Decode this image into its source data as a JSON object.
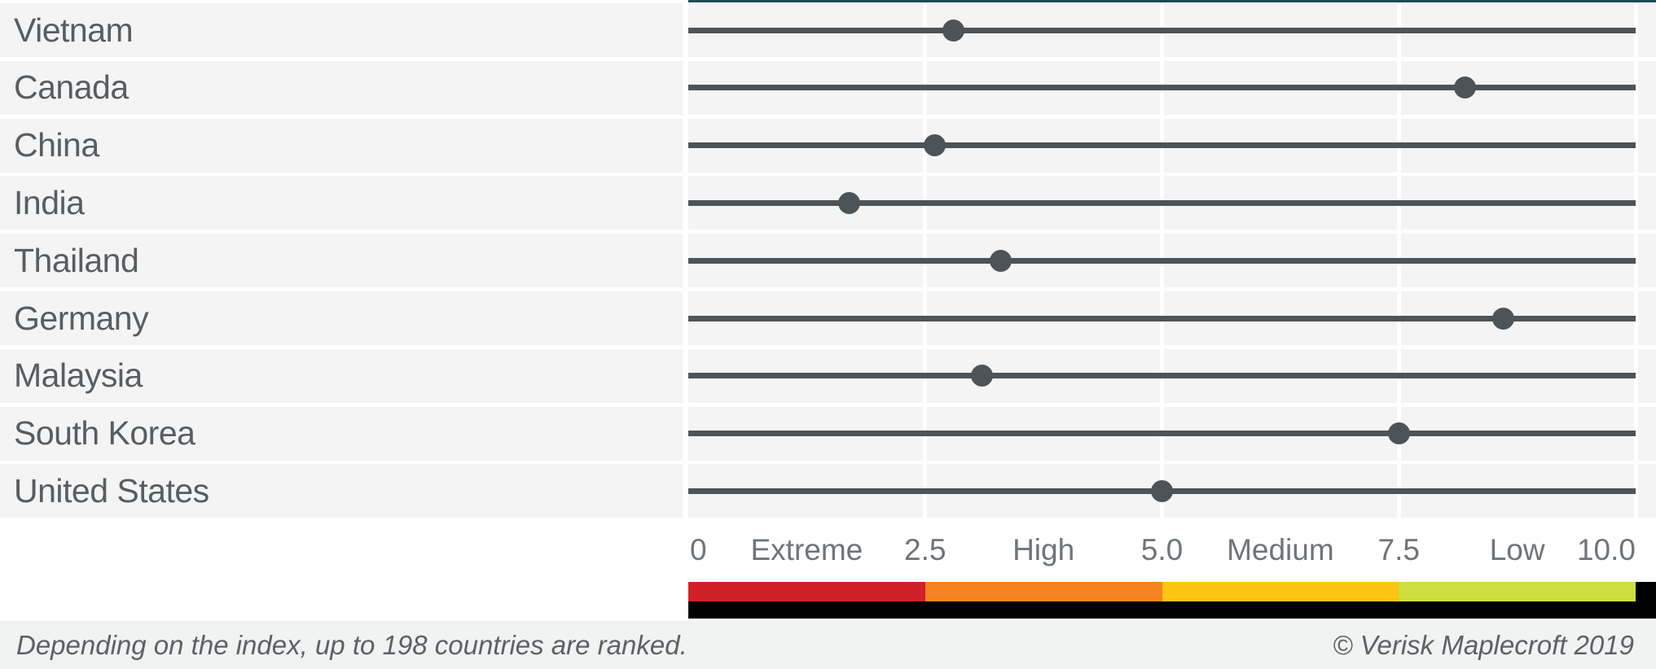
{
  "chart_data": {
    "type": "scatter",
    "title": "",
    "xlabel": "",
    "ylabel": "",
    "categories": [
      "Vietnam",
      "Canada",
      "China",
      "India",
      "Thailand",
      "Germany",
      "Malaysia",
      "South Korea",
      "United States"
    ],
    "values": [
      2.8,
      8.2,
      2.6,
      1.7,
      3.3,
      8.6,
      3.1,
      7.5,
      5.0
    ],
    "xlim": [
      0,
      10
    ],
    "grid": true,
    "gridlines_at": [
      2.5,
      5.0,
      7.5,
      10.0
    ],
    "axis_labels": [
      {
        "text": "0",
        "value": 0,
        "kind": "tick",
        "align": "start"
      },
      {
        "text": "Extreme",
        "value": 1.25,
        "kind": "zone",
        "align": "center"
      },
      {
        "text": "2.5",
        "value": 2.5,
        "kind": "tick",
        "align": "center"
      },
      {
        "text": "High",
        "value": 3.75,
        "kind": "zone",
        "align": "center"
      },
      {
        "text": "5.0",
        "value": 5.0,
        "kind": "tick",
        "align": "center"
      },
      {
        "text": "Medium",
        "value": 6.25,
        "kind": "zone",
        "align": "center"
      },
      {
        "text": "7.5",
        "value": 7.5,
        "kind": "tick",
        "align": "center"
      },
      {
        "text": "Low",
        "value": 8.75,
        "kind": "zone",
        "align": "center"
      },
      {
        "text": "10.0",
        "value": 10.0,
        "kind": "tick",
        "align": "end"
      }
    ],
    "color_scale": [
      {
        "label": "Extreme",
        "from": 0.0,
        "to": 2.5,
        "color": "#d02028"
      },
      {
        "label": "High",
        "from": 2.5,
        "to": 5.0,
        "color": "#f5831f"
      },
      {
        "label": "Medium",
        "from": 5.0,
        "to": 7.5,
        "color": "#fdc511"
      },
      {
        "label": "Low",
        "from": 7.5,
        "to": 10.0,
        "color": "#cedd3f"
      }
    ],
    "legend_position": "bottom"
  },
  "colors": {
    "marker": "#4e5357",
    "row_line": "#4e5357",
    "row_band": "#f4f4f4",
    "top_border": "#1c4a59",
    "scale_end_cap": "#000000",
    "scale_under_bar": "#000000",
    "footer_background": "#f1f2f2"
  },
  "footer": {
    "left_note": "Depending on the index, up to 198 countries are ranked.",
    "right_credit": "© Verisk Maplecroft 2019"
  }
}
